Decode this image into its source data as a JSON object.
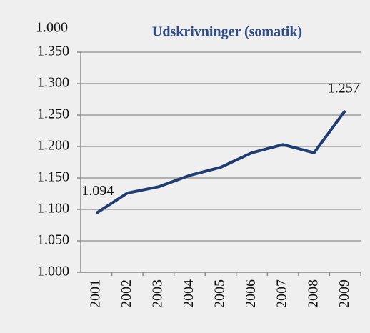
{
  "chart_data": {
    "type": "line",
    "title": "Udskrivninger (somatik)",
    "y_label": "1.000",
    "categories": [
      "2001",
      "2002",
      "2003",
      "2004",
      "2005",
      "2006",
      "2007",
      "2008",
      "2009"
    ],
    "series": [
      {
        "name": "Udskrivninger (somatik)",
        "color": "#1f3d73",
        "values": [
          1094,
          1126,
          1136,
          1154,
          1167,
          1190,
          1203,
          1190,
          1257
        ],
        "value_labels": [
          "1.094",
          null,
          null,
          null,
          null,
          null,
          null,
          null,
          "1.257"
        ]
      }
    ],
    "ylim": [
      1000,
      1350
    ],
    "yticks": [
      {
        "value": 1000,
        "label": "1.000"
      },
      {
        "value": 1050,
        "label": "1.050"
      },
      {
        "value": 1100,
        "label": "1.100"
      },
      {
        "value": 1150,
        "label": "1.150"
      },
      {
        "value": 1200,
        "label": "1.200"
      },
      {
        "value": 1250,
        "label": "1.250"
      },
      {
        "value": 1300,
        "label": "1.300"
      },
      {
        "value": 1350,
        "label": "1.350"
      }
    ],
    "grid": true
  }
}
